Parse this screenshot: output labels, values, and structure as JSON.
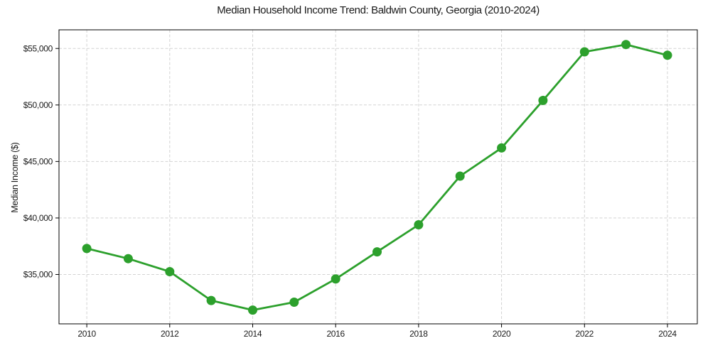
{
  "chart_data": {
    "type": "line",
    "title": "Median Household Income Trend: Baldwin County, Georgia (2010-2024)",
    "ylabel": "Median Income ($)",
    "xlabel": "",
    "x": [
      2010,
      2011,
      2012,
      2013,
      2014,
      2015,
      2016,
      2017,
      2018,
      2019,
      2020,
      2021,
      2022,
      2023,
      2024
    ],
    "values": [
      37300,
      36400,
      35250,
      32700,
      31850,
      32550,
      34600,
      37000,
      39400,
      43700,
      46200,
      50400,
      54700,
      55350,
      54400
    ],
    "xlim": [
      2009.33,
      2024.72
    ],
    "ylim": [
      30630,
      56650
    ],
    "xtick_values": [
      2010,
      2012,
      2014,
      2016,
      2018,
      2020,
      2022,
      2024
    ],
    "xtick_labels": [
      "2010",
      "2012",
      "2014",
      "2016",
      "2018",
      "2020",
      "2022",
      "2024"
    ],
    "ytick_values": [
      35000,
      40000,
      45000,
      50000,
      55000
    ],
    "ytick_labels": [
      "$35,000",
      "$40,000",
      "$45,000",
      "$50,000",
      "$55,000"
    ],
    "grid": true,
    "grid_style": "dashed",
    "legend": false,
    "colors": {
      "line": "#2ca02c",
      "marker": "#2ca02c",
      "grid": "#d3d3d3",
      "axis": "#000000",
      "text": "#1a1a1a",
      "background": "#ffffff"
    }
  }
}
